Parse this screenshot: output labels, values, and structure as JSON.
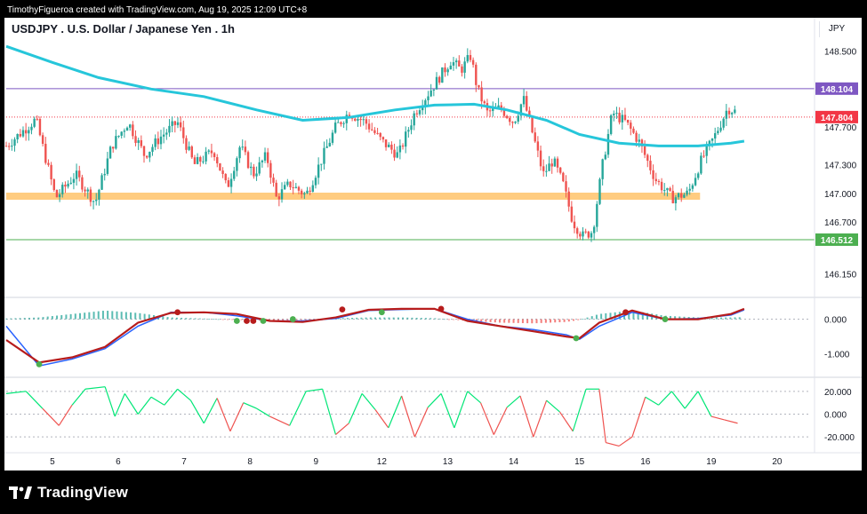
{
  "watermark": "TimothyFigueroa created with TradingView.com, Aug 19, 2025 12:09 UTC+8",
  "brand": "TradingView",
  "colors": {
    "up": "#26a69a",
    "down": "#ef5350",
    "ma": "#26c6da",
    "resistance_line": "#7e57c2",
    "support_line": "#4caf50",
    "zone": "#ffcc80",
    "last_price": "#f23645"
  },
  "chart_data": [
    {
      "type": "candlestick",
      "title": "USDJPY . U.S. Dollar / Japanese Yen . 1h",
      "currency": "JPY",
      "ylim": [
        145.95,
        148.72
      ],
      "price_ticks": [
        "148.500",
        "147.700",
        "147.300",
        "147.000",
        "146.700",
        "146.150"
      ],
      "price_tick_values": [
        148.5,
        147.7,
        147.3,
        147.0,
        146.7,
        146.15
      ],
      "x_ticks": [
        "5",
        "6",
        "7",
        "8",
        "9",
        "12",
        "13",
        "14",
        "15",
        "16",
        "19",
        "20"
      ],
      "x_range": [
        0,
        12.2
      ],
      "x_tick_values": [
        0.7,
        1.7,
        2.7,
        3.7,
        4.7,
        5.7,
        6.7,
        7.7,
        8.7,
        9.7,
        10.7,
        11.7
      ],
      "horizontal_lines": [
        {
          "label": "148.104",
          "value": 148.104,
          "color": "#7e57c2"
        },
        {
          "label": "146.512",
          "value": 146.512,
          "color": "#4caf50"
        }
      ],
      "zone": {
        "value": 146.97,
        "x_end": 10.53
      },
      "last_price": {
        "label": "147.804",
        "value": 147.804
      },
      "moving_average": {
        "x": [
          0,
          0.7,
          1.4,
          2.2,
          3.0,
          3.8,
          4.5,
          5.2,
          5.9,
          6.5,
          7.1,
          7.6,
          8.2,
          8.7,
          9.3,
          9.9,
          10.5,
          11.0,
          11.2
        ],
        "y": [
          148.55,
          148.38,
          148.22,
          148.1,
          148.02,
          147.88,
          147.77,
          147.8,
          147.88,
          147.93,
          147.94,
          147.88,
          147.77,
          147.62,
          147.53,
          147.5,
          147.5,
          147.53,
          147.55
        ]
      },
      "price_path": {
        "x": [
          0,
          0.45,
          0.75,
          1.05,
          1.35,
          1.6,
          1.85,
          2.1,
          2.35,
          2.6,
          2.85,
          3.15,
          3.35,
          3.55,
          3.75,
          3.95,
          4.1,
          4.3,
          4.55,
          4.75,
          5.0,
          5.2,
          5.45,
          5.7,
          5.95,
          6.2,
          6.45,
          6.6,
          6.75,
          6.9,
          7.05,
          7.15,
          7.3,
          7.5,
          7.7,
          7.85,
          8.0,
          8.15,
          8.3,
          8.45,
          8.6,
          8.75,
          8.9,
          9.05,
          9.2,
          9.4,
          9.6,
          9.85,
          10.1,
          10.35,
          10.55,
          10.75,
          10.95,
          11.1
        ],
        "y": [
          147.5,
          147.78,
          146.95,
          147.2,
          146.9,
          147.5,
          147.75,
          147.4,
          147.6,
          147.75,
          147.3,
          147.45,
          147.05,
          147.5,
          147.2,
          147.4,
          146.95,
          147.1,
          146.98,
          147.3,
          147.7,
          147.85,
          147.75,
          147.55,
          147.4,
          147.85,
          148.1,
          148.25,
          148.4,
          148.3,
          148.45,
          148.1,
          147.85,
          147.9,
          147.75,
          148.0,
          147.6,
          147.2,
          147.35,
          147.1,
          146.7,
          146.55,
          146.6,
          147.3,
          147.85,
          147.75,
          147.55,
          147.15,
          146.95,
          147.0,
          147.35,
          147.6,
          147.9,
          147.85
        ]
      }
    },
    {
      "type": "line",
      "title": "",
      "ylim": [
        -1.6,
        0.45
      ],
      "y_ticks": [
        "0.000",
        "-1.000"
      ],
      "y_tick_values": [
        0,
        -1.0
      ],
      "x": [
        0,
        0.5,
        1.0,
        1.5,
        2.0,
        2.5,
        3.0,
        3.5,
        4.0,
        4.5,
        5.0,
        5.5,
        6.0,
        6.5,
        7.0,
        7.5,
        8.0,
        8.5,
        8.7,
        9.0,
        9.5,
        10.0,
        10.5,
        11.0,
        11.2
      ],
      "series": [
        {
          "values": [
            -0.6,
            -1.25,
            -1.1,
            -0.8,
            -0.1,
            0.18,
            0.2,
            0.15,
            -0.05,
            -0.08,
            0.05,
            0.27,
            0.3,
            0.3,
            -0.05,
            -0.2,
            -0.35,
            -0.5,
            -0.55,
            -0.1,
            0.25,
            0.0,
            0.0,
            0.15,
            0.3
          ]
        },
        {
          "values": [
            -0.2,
            -1.35,
            -1.15,
            -0.85,
            -0.2,
            0.2,
            0.2,
            0.1,
            -0.05,
            -0.05,
            0.02,
            0.25,
            0.28,
            0.3,
            0.0,
            -0.2,
            -0.3,
            -0.45,
            -0.58,
            -0.2,
            0.2,
            0.0,
            0.02,
            0.12,
            0.27
          ]
        }
      ],
      "histogram": [
        0.02,
        0.05,
        0.15,
        0.25,
        0.18,
        0.05,
        0.02,
        -0.02,
        -0.05,
        -0.02,
        0.03,
        0.05,
        0.05,
        0.03,
        -0.05,
        -0.1,
        -0.12,
        -0.08,
        -0.02,
        0.15,
        0.25,
        0.1,
        0.05,
        0.05,
        0.06
      ],
      "cross_points": [
        {
          "x": 0.5,
          "y": -1.3,
          "color": "#4caf50"
        },
        {
          "x": 2.6,
          "y": 0.2,
          "color": "#b71c1c"
        },
        {
          "x": 3.5,
          "y": -0.05,
          "color": "#4caf50"
        },
        {
          "x": 3.65,
          "y": -0.05,
          "color": "#b71c1c"
        },
        {
          "x": 3.75,
          "y": -0.05,
          "color": "#b71c1c"
        },
        {
          "x": 3.9,
          "y": -0.05,
          "color": "#4caf50"
        },
        {
          "x": 4.35,
          "y": 0.0,
          "color": "#4caf50"
        },
        {
          "x": 5.1,
          "y": 0.28,
          "color": "#b71c1c"
        },
        {
          "x": 5.7,
          "y": 0.2,
          "color": "#4caf50"
        },
        {
          "x": 6.6,
          "y": 0.3,
          "color": "#b71c1c"
        },
        {
          "x": 8.65,
          "y": -0.55,
          "color": "#4caf50"
        },
        {
          "x": 9.4,
          "y": 0.2,
          "color": "#b71c1c"
        },
        {
          "x": 10.0,
          "y": 0.0,
          "color": "#4caf50"
        }
      ]
    },
    {
      "type": "line",
      "title": "",
      "ylim": [
        -30,
        30
      ],
      "y_ticks": [
        "20.000",
        "0.000",
        "-20.000"
      ],
      "y_tick_values": [
        20,
        0,
        -20
      ],
      "x": [
        0,
        0.3,
        0.55,
        0.8,
        1.0,
        1.2,
        1.5,
        1.65,
        1.8,
        2.0,
        2.2,
        2.4,
        2.6,
        2.8,
        3.0,
        3.2,
        3.4,
        3.6,
        3.8,
        4.0,
        4.3,
        4.55,
        4.8,
        5.0,
        5.2,
        5.4,
        5.6,
        5.8,
        6.0,
        6.2,
        6.4,
        6.6,
        6.8,
        7.0,
        7.2,
        7.4,
        7.6,
        7.8,
        8.0,
        8.2,
        8.4,
        8.6,
        8.8,
        9.0,
        9.1,
        9.3,
        9.5,
        9.7,
        9.9,
        10.1,
        10.3,
        10.5,
        10.7,
        10.9,
        11.1
      ],
      "values": [
        18,
        20,
        5,
        -10,
        8,
        22,
        24,
        -2,
        18,
        0,
        15,
        8,
        22,
        12,
        -8,
        14,
        -15,
        10,
        5,
        -2,
        -10,
        20,
        22,
        -18,
        -8,
        18,
        4,
        -12,
        16,
        -20,
        6,
        18,
        -12,
        20,
        10,
        -18,
        6,
        16,
        -20,
        12,
        2,
        -15,
        22,
        22,
        -25,
        -28,
        -20,
        15,
        8,
        20,
        5,
        20,
        -2,
        -5,
        -8
      ]
    }
  ]
}
